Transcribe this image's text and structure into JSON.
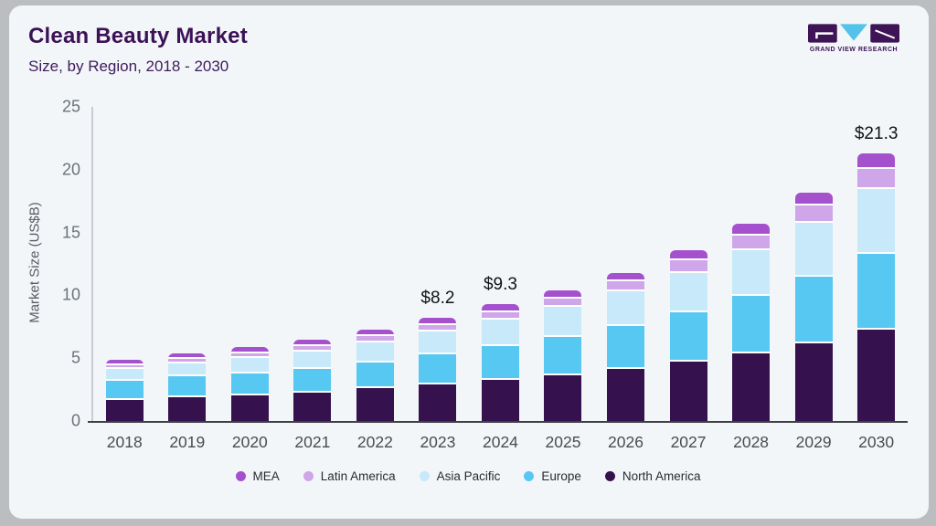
{
  "header": {
    "title": "Clean Beauty Market",
    "subtitle": "Size, by Region, 2018 - 2030",
    "logo_text": "GRAND VIEW RESEARCH"
  },
  "chart_data": {
    "type": "bar",
    "stacked": true,
    "title": "Clean Beauty Market Size, by Region, 2018 - 2030",
    "xlabel": "",
    "ylabel": "Market Size (US$B)",
    "ylim": [
      0,
      25
    ],
    "yticks": [
      0,
      5,
      10,
      15,
      20,
      25
    ],
    "grid": false,
    "legend_position": "bottom",
    "categories": [
      "2018",
      "2019",
      "2020",
      "2021",
      "2022",
      "2023",
      "2024",
      "2025",
      "2026",
      "2027",
      "2028",
      "2029",
      "2030"
    ],
    "series": [
      {
        "name": "North America",
        "color": "#35124e",
        "values": [
          1.7,
          1.92,
          2.05,
          2.27,
          2.6,
          2.93,
          3.28,
          3.65,
          4.15,
          4.72,
          5.38,
          6.17,
          7.25
        ]
      },
      {
        "name": "Europe",
        "color": "#57c8f2",
        "values": [
          1.5,
          1.62,
          1.74,
          1.9,
          2.04,
          2.35,
          2.66,
          3.03,
          3.42,
          3.9,
          4.58,
          5.28,
          6.08
        ]
      },
      {
        "name": "Asia Pacific",
        "color": "#c7e9f9",
        "values": [
          0.95,
          1.05,
          1.24,
          1.33,
          1.63,
          1.84,
          2.15,
          2.4,
          2.72,
          3.18,
          3.66,
          4.29,
          5.1
        ]
      },
      {
        "name": "Latin America",
        "color": "#cfa6e9",
        "values": [
          0.31,
          0.34,
          0.37,
          0.46,
          0.48,
          0.52,
          0.56,
          0.67,
          0.81,
          1.02,
          1.16,
          1.4,
          1.64
        ]
      },
      {
        "name": "MEA",
        "color": "#a551ce",
        "values": [
          0.44,
          0.47,
          0.5,
          0.54,
          0.55,
          0.56,
          0.65,
          0.65,
          0.7,
          0.78,
          0.92,
          1.06,
          1.23
        ]
      }
    ],
    "totals": [
      4.9,
      5.4,
      5.9,
      6.5,
      7.3,
      8.2,
      9.3,
      10.4,
      11.8,
      13.6,
      15.7,
      18.2,
      21.3
    ],
    "bar_labels": [
      "",
      "",
      "",
      "",
      "",
      "$8.2",
      "$9.3",
      "",
      "",
      "",
      "",
      "",
      "$21.3"
    ]
  },
  "colors": {
    "page_bg": "#bcbdc0",
    "card_bg": "#f3f6f9",
    "title": "#3c1257",
    "y_axis_line": "#c7ccd2",
    "x_axis_line": "#3d4044",
    "segment_separator": "#ffffff",
    "logo_dark": "#3e1456",
    "logo_blue": "#54c3ea"
  }
}
